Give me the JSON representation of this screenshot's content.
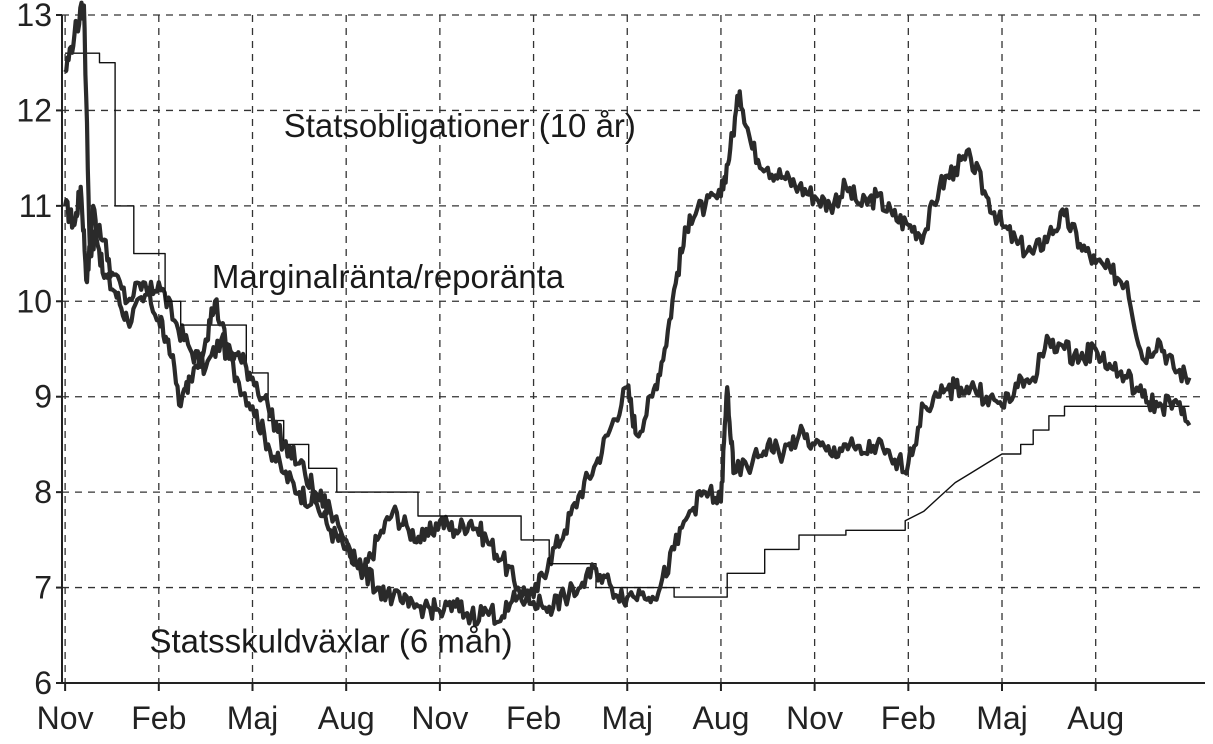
{
  "chart_data": {
    "type": "line",
    "title": "",
    "xlabel": "",
    "ylabel": "",
    "ylim": [
      6,
      13
    ],
    "y_ticks": [
      6,
      7,
      8,
      9,
      10,
      11,
      12,
      13
    ],
    "x_ticks": [
      {
        "label": "Nov",
        "x": 0
      },
      {
        "label": "Feb",
        "x": 3
      },
      {
        "label": "Maj",
        "x": 6
      },
      {
        "label": "Aug",
        "x": 9
      },
      {
        "label": "Nov",
        "x": 12
      },
      {
        "label": "Feb",
        "x": 15
      },
      {
        "label": "Maj",
        "x": 18
      },
      {
        "label": "Aug",
        "x": 21
      },
      {
        "label": "Nov",
        "x": 24
      },
      {
        "label": "Feb",
        "x": 27
      },
      {
        "label": "Maj",
        "x": 30
      },
      {
        "label": "Aug",
        "x": 33
      }
    ],
    "xlim": [
      -0.1,
      36.5
    ],
    "grid": true,
    "annotations": [
      {
        "text": "Statsobligationer (10 år)",
        "x": 7.0,
        "y": 11.72
      },
      {
        "text": "Marginalränta/reporänta",
        "x": 4.7,
        "y": 10.14
      },
      {
        "text": "Statsskuldväxlar (6 måh)",
        "x": 2.7,
        "y": 6.32
      }
    ],
    "series": [
      {
        "name": "Statsobligationer (10 år)",
        "style": "thick",
        "points": [
          [
            0,
            11.0
          ],
          [
            0.3,
            10.8
          ],
          [
            0.5,
            11.2
          ],
          [
            0.7,
            10.2
          ],
          [
            0.9,
            11.0
          ],
          [
            1.2,
            10.3
          ],
          [
            1.6,
            10.1
          ],
          [
            2.0,
            9.8
          ],
          [
            2.5,
            10.0
          ],
          [
            3.0,
            10.2
          ],
          [
            3.5,
            9.8
          ],
          [
            4.0,
            9.5
          ],
          [
            4.5,
            9.3
          ],
          [
            5.0,
            9.6
          ],
          [
            5.5,
            9.2
          ],
          [
            6.0,
            8.9
          ],
          [
            6.5,
            8.5
          ],
          [
            7.0,
            8.2
          ],
          [
            7.5,
            8.0
          ],
          [
            8.0,
            7.9
          ],
          [
            8.5,
            7.6
          ],
          [
            9.0,
            7.4
          ],
          [
            9.5,
            7.1
          ],
          [
            10.0,
            7.5
          ],
          [
            10.5,
            7.8
          ],
          [
            11.0,
            7.6
          ],
          [
            11.5,
            7.5
          ],
          [
            12.0,
            7.7
          ],
          [
            12.5,
            7.6
          ],
          [
            13.0,
            7.7
          ],
          [
            13.5,
            7.5
          ],
          [
            14.0,
            7.3
          ],
          [
            14.5,
            7.0
          ],
          [
            15.0,
            6.9
          ],
          [
            15.5,
            7.3
          ],
          [
            16.0,
            7.6
          ],
          [
            16.5,
            8.0
          ],
          [
            17.0,
            8.3
          ],
          [
            17.5,
            8.7
          ],
          [
            18.0,
            9.1
          ],
          [
            18.3,
            8.6
          ],
          [
            18.8,
            9.0
          ],
          [
            19.2,
            9.5
          ],
          [
            19.6,
            10.3
          ],
          [
            20.0,
            10.9
          ],
          [
            20.5,
            11.0
          ],
          [
            21.0,
            11.1
          ],
          [
            21.3,
            11.6
          ],
          [
            21.6,
            12.2
          ],
          [
            22.0,
            11.6
          ],
          [
            22.5,
            11.4
          ],
          [
            23.0,
            11.3
          ],
          [
            23.5,
            11.2
          ],
          [
            24.0,
            11.1
          ],
          [
            24.5,
            11.0
          ],
          [
            25.0,
            11.2
          ],
          [
            25.5,
            11.0
          ],
          [
            26.0,
            11.1
          ],
          [
            26.5,
            10.9
          ],
          [
            27.0,
            10.8
          ],
          [
            27.5,
            10.7
          ],
          [
            28.0,
            11.2
          ],
          [
            28.5,
            11.4
          ],
          [
            29.0,
            11.5
          ],
          [
            29.5,
            11.1
          ],
          [
            30.0,
            10.8
          ],
          [
            30.5,
            10.6
          ],
          [
            31.0,
            10.5
          ],
          [
            31.5,
            10.7
          ],
          [
            32.0,
            10.9
          ],
          [
            32.5,
            10.6
          ],
          [
            33.0,
            10.4
          ],
          [
            33.5,
            10.3
          ],
          [
            34.0,
            10.2
          ],
          [
            34.5,
            9.4
          ],
          [
            35.0,
            9.6
          ],
          [
            35.5,
            9.3
          ],
          [
            36.0,
            9.2
          ]
        ]
      },
      {
        "name": "Marginalränta/reporänta",
        "style": "thin-step",
        "points": [
          [
            0,
            12.6
          ],
          [
            1.1,
            12.6
          ],
          [
            1.1,
            12.5
          ],
          [
            1.6,
            12.5
          ],
          [
            1.6,
            11.0
          ],
          [
            2.2,
            11.0
          ],
          [
            2.2,
            10.5
          ],
          [
            3.2,
            10.5
          ],
          [
            3.2,
            10.0
          ],
          [
            3.7,
            10.0
          ],
          [
            3.7,
            9.75
          ],
          [
            5.8,
            9.75
          ],
          [
            5.8,
            9.25
          ],
          [
            6.5,
            9.25
          ],
          [
            6.5,
            8.75
          ],
          [
            7.0,
            8.75
          ],
          [
            7.0,
            8.5
          ],
          [
            7.8,
            8.5
          ],
          [
            7.8,
            8.25
          ],
          [
            8.7,
            8.25
          ],
          [
            8.7,
            8.0
          ],
          [
            11.3,
            8.0
          ],
          [
            11.3,
            7.75
          ],
          [
            14.6,
            7.75
          ],
          [
            14.6,
            7.5
          ],
          [
            15.5,
            7.5
          ],
          [
            15.5,
            7.25
          ],
          [
            17.0,
            7.25
          ],
          [
            17.0,
            7.0
          ],
          [
            19.5,
            7.0
          ],
          [
            19.5,
            6.9
          ],
          [
            21.2,
            6.9
          ],
          [
            21.2,
            7.15
          ],
          [
            22.4,
            7.15
          ],
          [
            22.4,
            7.4
          ],
          [
            23.5,
            7.4
          ],
          [
            23.5,
            7.55
          ],
          [
            25.0,
            7.55
          ],
          [
            25.0,
            7.6
          ],
          [
            26.9,
            7.6
          ],
          [
            26.9,
            7.7
          ],
          [
            27.5,
            7.8
          ],
          [
            28.0,
            7.95
          ],
          [
            28.5,
            8.1
          ],
          [
            29.0,
            8.2
          ],
          [
            29.5,
            8.3
          ],
          [
            30.0,
            8.4
          ],
          [
            30.6,
            8.4
          ],
          [
            30.6,
            8.5
          ],
          [
            31.0,
            8.5
          ],
          [
            31.0,
            8.65
          ],
          [
            31.5,
            8.65
          ],
          [
            31.5,
            8.8
          ],
          [
            32.0,
            8.8
          ],
          [
            32.0,
            8.9
          ],
          [
            36.0,
            8.9
          ]
        ]
      },
      {
        "name": "Statsskuldväxlar (6 måh)",
        "style": "thick",
        "points": [
          [
            0,
            12.4
          ],
          [
            0.3,
            12.8
          ],
          [
            0.6,
            13.1
          ],
          [
            0.8,
            10.5
          ],
          [
            1.1,
            10.8
          ],
          [
            1.5,
            10.3
          ],
          [
            2.0,
            10.0
          ],
          [
            2.5,
            10.2
          ],
          [
            3.0,
            9.8
          ],
          [
            3.3,
            9.6
          ],
          [
            3.7,
            8.9
          ],
          [
            4.0,
            9.2
          ],
          [
            4.5,
            9.6
          ],
          [
            4.8,
            10.0
          ],
          [
            5.2,
            9.5
          ],
          [
            5.6,
            9.4
          ],
          [
            6.0,
            9.2
          ],
          [
            6.5,
            8.9
          ],
          [
            7.0,
            8.5
          ],
          [
            7.5,
            8.3
          ],
          [
            8.0,
            8.0
          ],
          [
            8.5,
            7.8
          ],
          [
            9.0,
            7.5
          ],
          [
            9.5,
            7.2
          ],
          [
            10.0,
            7.0
          ],
          [
            10.5,
            6.9
          ],
          [
            11.0,
            6.8
          ],
          [
            11.5,
            6.8
          ],
          [
            12.0,
            6.75
          ],
          [
            12.5,
            6.8
          ],
          [
            13.0,
            6.7
          ],
          [
            13.5,
            6.75
          ],
          [
            14.0,
            6.7
          ],
          [
            14.5,
            6.9
          ],
          [
            15.0,
            6.85
          ],
          [
            15.5,
            6.8
          ],
          [
            16.0,
            6.9
          ],
          [
            16.5,
            7.0
          ],
          [
            17.0,
            7.2
          ],
          [
            17.5,
            7.0
          ],
          [
            18.0,
            6.9
          ],
          [
            18.5,
            6.95
          ],
          [
            19.0,
            6.95
          ],
          [
            19.5,
            7.4
          ],
          [
            20.0,
            7.8
          ],
          [
            20.5,
            8.0
          ],
          [
            21.0,
            7.9
          ],
          [
            21.2,
            9.1
          ],
          [
            21.4,
            8.2
          ],
          [
            22.0,
            8.3
          ],
          [
            22.5,
            8.5
          ],
          [
            23.0,
            8.4
          ],
          [
            23.5,
            8.6
          ],
          [
            24.0,
            8.5
          ],
          [
            24.5,
            8.4
          ],
          [
            25.0,
            8.5
          ],
          [
            25.5,
            8.4
          ],
          [
            26.0,
            8.5
          ],
          [
            26.5,
            8.3
          ],
          [
            27.0,
            8.3
          ],
          [
            27.5,
            8.9
          ],
          [
            28.0,
            9.0
          ],
          [
            28.5,
            9.1
          ],
          [
            29.0,
            9.1
          ],
          [
            29.5,
            9.0
          ],
          [
            30.0,
            8.9
          ],
          [
            30.5,
            9.1
          ],
          [
            31.0,
            9.2
          ],
          [
            31.5,
            9.6
          ],
          [
            32.0,
            9.5
          ],
          [
            32.5,
            9.4
          ],
          [
            33.0,
            9.5
          ],
          [
            33.5,
            9.3
          ],
          [
            34.0,
            9.2
          ],
          [
            34.5,
            9.0
          ],
          [
            35.0,
            8.9
          ],
          [
            35.5,
            8.95
          ],
          [
            36.0,
            8.7
          ]
        ]
      }
    ]
  }
}
